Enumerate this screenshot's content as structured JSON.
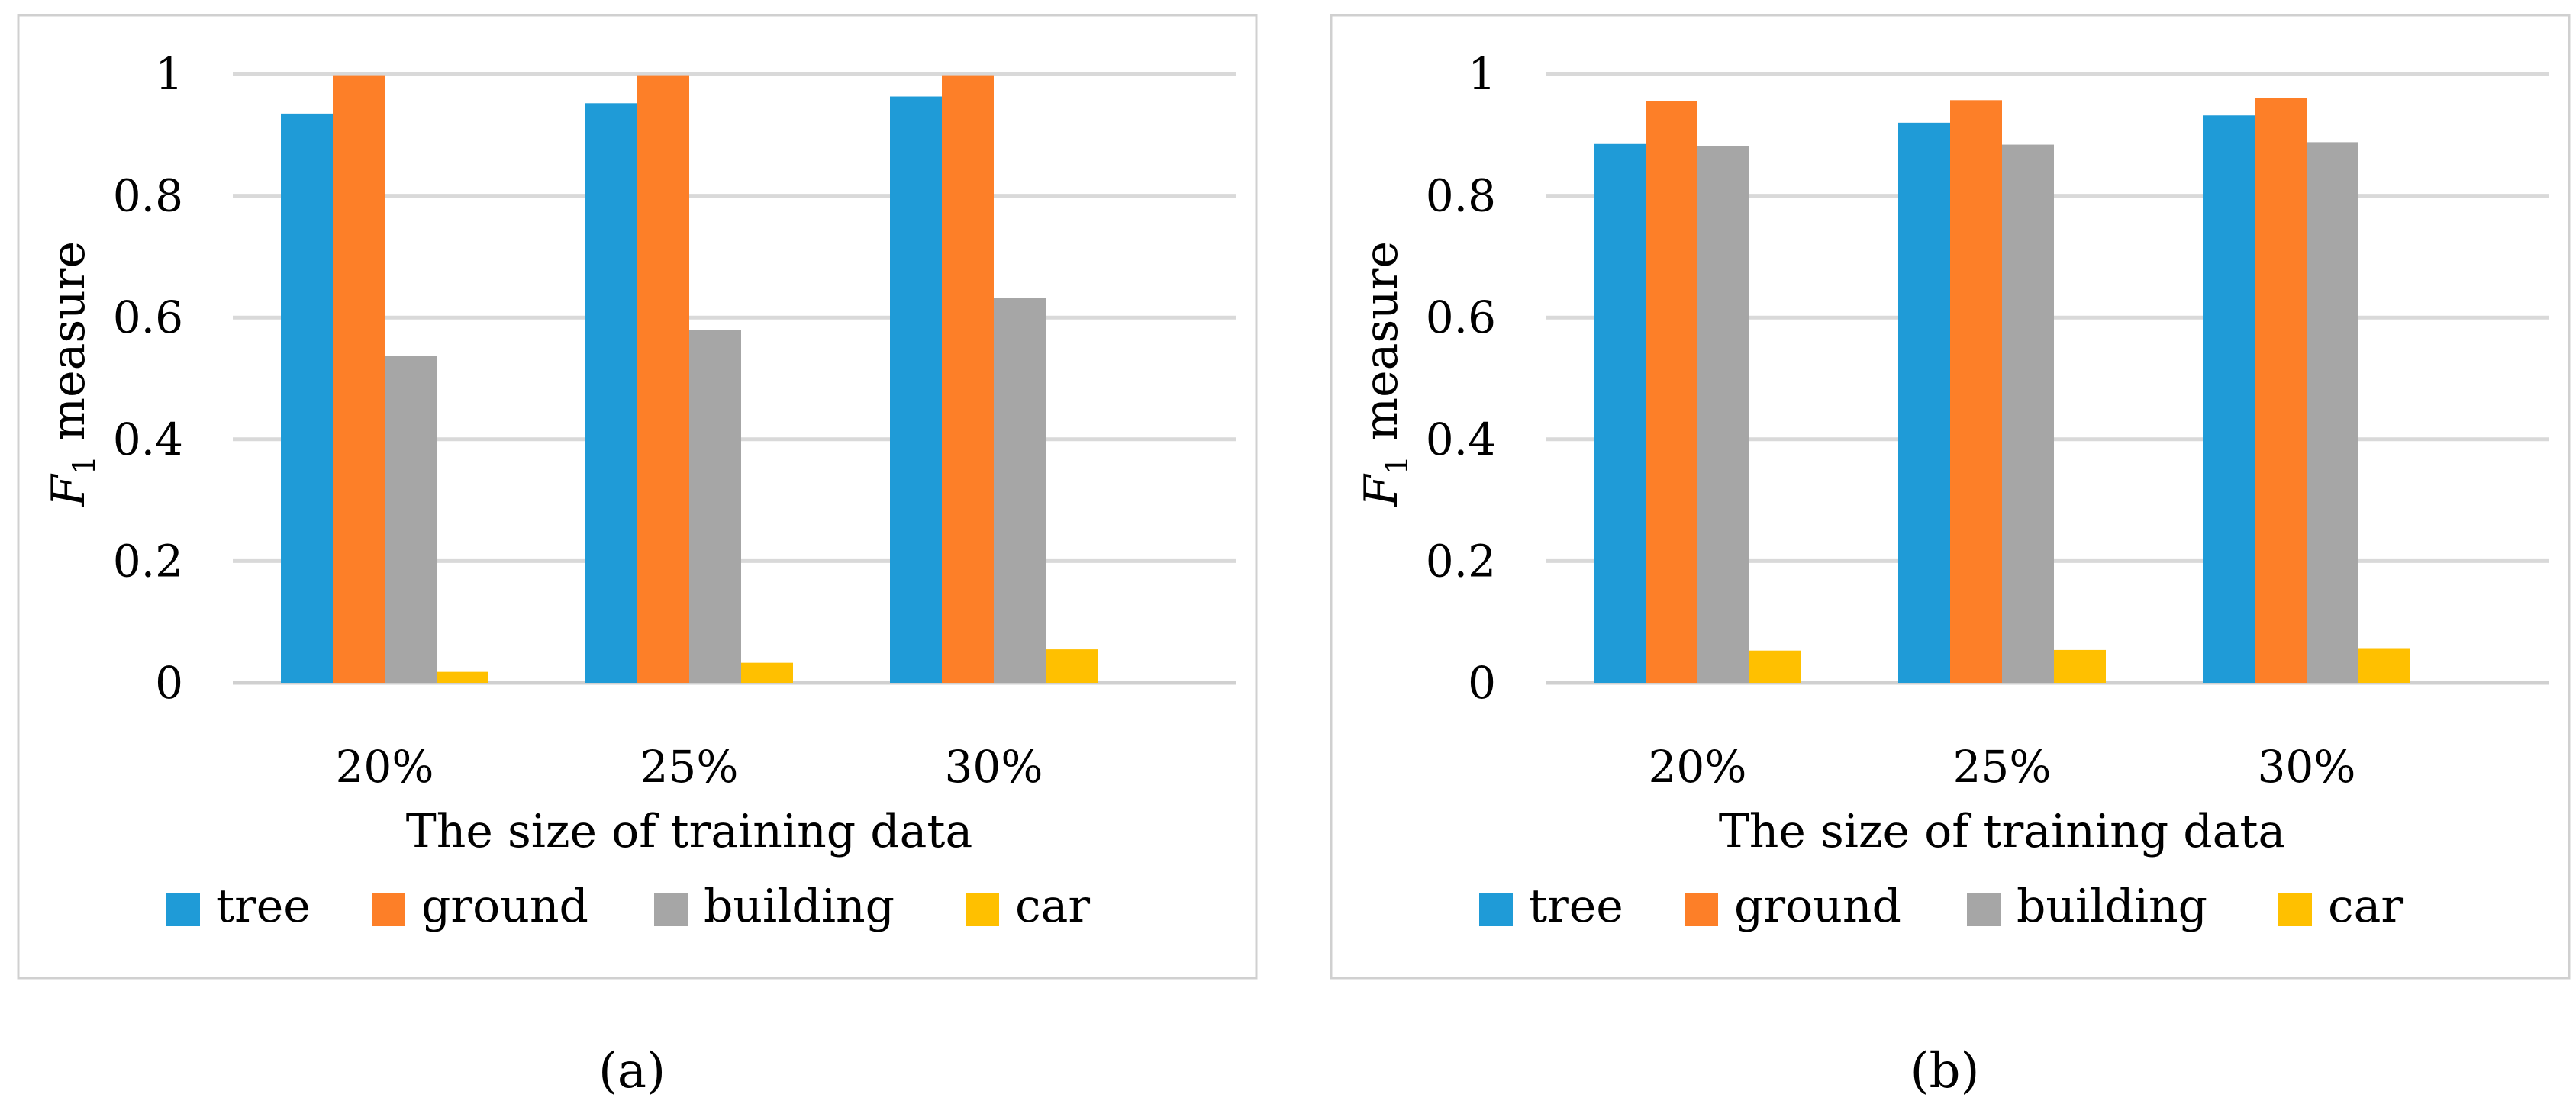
{
  "colors": {
    "tree": "#1f9bd7",
    "ground": "#fd7f28",
    "building": "#a6a6a6",
    "car": "#ffc000"
  },
  "chart_data": [
    {
      "type": "bar",
      "panel_label": "(a)",
      "categories": [
        "20%",
        "25%",
        "30%"
      ],
      "series": [
        {
          "name": "tree",
          "values": [
            0.935,
            0.952,
            0.963
          ]
        },
        {
          "name": "ground",
          "values": [
            0.998,
            0.998,
            0.998
          ]
        },
        {
          "name": "building",
          "values": [
            0.537,
            0.58,
            0.632
          ]
        },
        {
          "name": "car",
          "values": [
            0.018,
            0.033,
            0.055
          ]
        }
      ],
      "title": "",
      "xlabel": "The size of training data",
      "ylabel_main": "F",
      "ylabel_sub": "1",
      "ylabel_rest": " measure",
      "ylim": [
        0,
        1
      ],
      "yticks": [
        "0",
        "0.2",
        "0.4",
        "0.6",
        "0.8",
        "1"
      ],
      "ytick_values": [
        0,
        0.2,
        0.4,
        0.6,
        0.8,
        1
      ],
      "legend_position": "bottom",
      "grid": true
    },
    {
      "type": "bar",
      "panel_label": "(b)",
      "categories": [
        "20%",
        "25%",
        "30%"
      ],
      "series": [
        {
          "name": "tree",
          "values": [
            0.885,
            0.92,
            0.932
          ]
        },
        {
          "name": "ground",
          "values": [
            0.955,
            0.957,
            0.96
          ]
        },
        {
          "name": "building",
          "values": [
            0.882,
            0.884,
            0.888
          ]
        },
        {
          "name": "car",
          "values": [
            0.053,
            0.054,
            0.057
          ]
        }
      ],
      "title": "",
      "xlabel": "The size of training data",
      "ylabel_main": "F",
      "ylabel_sub": "1",
      "ylabel_rest": " measure",
      "ylim": [
        0,
        1
      ],
      "yticks": [
        "0",
        "0.2",
        "0.4",
        "0.6",
        "0.8",
        "1"
      ],
      "ytick_values": [
        0,
        0.2,
        0.4,
        0.6,
        0.8,
        1
      ],
      "legend_position": "bottom",
      "grid": true
    }
  ]
}
